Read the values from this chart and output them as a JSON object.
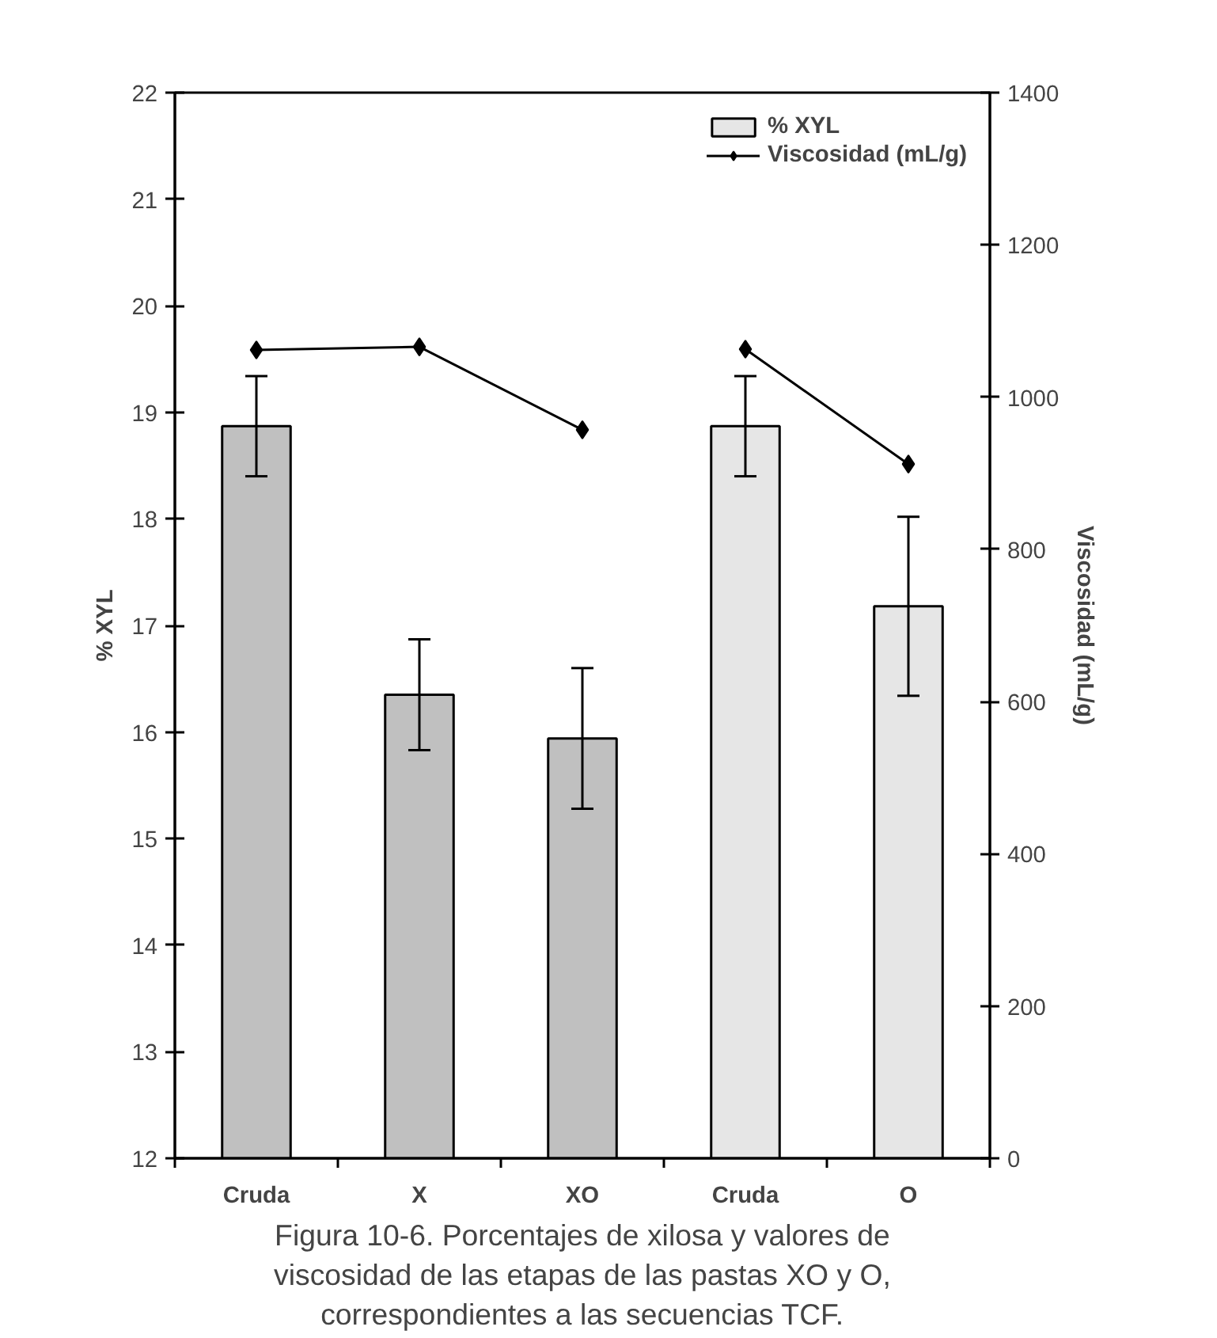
{
  "chart_data": {
    "type": "bar",
    "categories": [
      "Cruda",
      "X",
      "XO",
      "Cruda",
      "O"
    ],
    "series": [
      {
        "name": "% XYL",
        "colors": [
          "#c0c0c0",
          "#c0c0c0",
          "#c0c0c0",
          "#e6e6e6",
          "#e6e6e6"
        ],
        "values": [
          18.87,
          16.35,
          15.94,
          18.87,
          17.18
        ],
        "errors": [
          0.47,
          0.52,
          0.66,
          0.47,
          0.84
        ]
      },
      {
        "name": "Viscosidad (mL/g)",
        "type": "line",
        "axis": "y2",
        "color": "#000000",
        "values": [
          1062,
          1066,
          957,
          null,
          null
        ]
      },
      {
        "type": "line",
        "axis": "y2",
        "color": "#000000",
        "values": [
          null,
          null,
          null,
          1063,
          912
        ]
      }
    ],
    "ylabel": "% XYL",
    "y2label": "Viscosidad (mL/g)",
    "ylim": [
      12,
      22
    ],
    "yticks": [
      12,
      13,
      14,
      15,
      16,
      17,
      18,
      19,
      20,
      21,
      22
    ],
    "y2lim": [
      0,
      1400
    ],
    "y2ticks": [
      0,
      200,
      400,
      600,
      800,
      1000,
      1200,
      1400
    ],
    "marker": "diamond",
    "line_style": "solid",
    "grid": false,
    "legend": "top right",
    "annotations": [
      "Figura 10-6. Porcentajes de xilosa y valores de viscosidad de las etapas de las pastas XO y O, correspondientes a las secuencias TCF."
    ]
  }
}
